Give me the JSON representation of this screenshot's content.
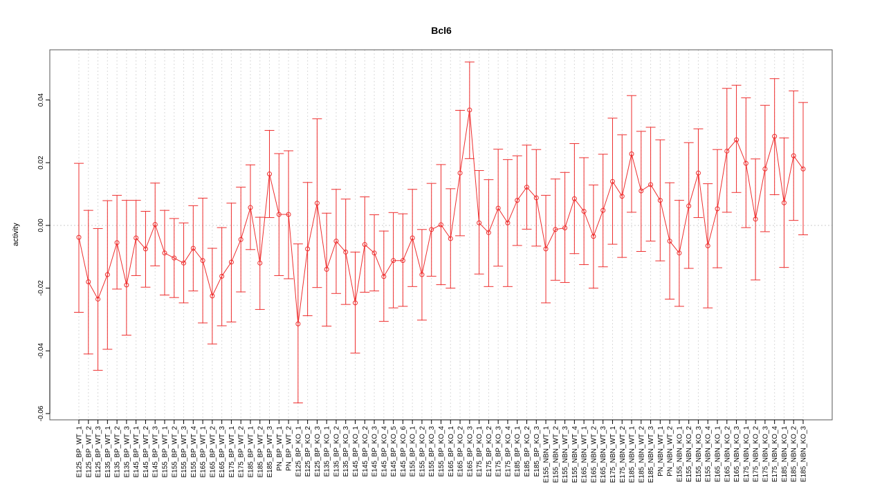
{
  "chart_data": {
    "type": "line",
    "title": "Bcl6",
    "xlabel": "",
    "ylabel": "activity",
    "ylim": [
      -0.062,
      0.056
    ],
    "yticks": [
      -0.06,
      -0.04,
      -0.02,
      0.0,
      0.02,
      0.04
    ],
    "ytick_labels": [
      "-0.06",
      "-0.04",
      "-0.02",
      "0.00",
      "0.02",
      "0.04"
    ],
    "grid": true,
    "color": "#ee2c2c",
    "categories": [
      "E125_BP_WT_1",
      "E125_BP_WT_2",
      "E125_BP_WT_3",
      "E135_BP_WT_1",
      "E135_BP_WT_2",
      "E135_BP_WT_3",
      "E145_BP_WT_1",
      "E145_BP_WT_2",
      "E145_BP_WT_3",
      "E155_BP_WT_1",
      "E155_BP_WT_2",
      "E155_BP_WT_3",
      "E155_BP_WT_4",
      "E165_BP_WT_1",
      "E165_BP_WT_2",
      "E165_BP_WT_3",
      "E175_BP_WT_1",
      "E175_BP_WT_2",
      "E185_BP_WT_1",
      "E185_BP_WT_2",
      "E185_BP_WT_3",
      "PN_BP_WT_1",
      "PN_BP_WT_2",
      "E125_BP_KO_1",
      "E125_BP_KO_2",
      "E125_BP_KO_3",
      "E135_BP_KO_1",
      "E135_BP_KO_2",
      "E135_BP_KO_3",
      "E145_BP_KO_1",
      "E145_BP_KO_2",
      "E145_BP_KO_3",
      "E145_BP_KO_4",
      "E145_BP_KO_5",
      "E145_BP_KO_6",
      "E155_BP_KO_1",
      "E155_BP_KO_2",
      "E155_BP_KO_3",
      "E155_BP_KO_4",
      "E165_BP_KO_1",
      "E165_BP_KO_2",
      "E165_BP_KO_3",
      "E175_BP_KO_1",
      "E175_BP_KO_2",
      "E175_BP_KO_3",
      "E175_BP_KO_4",
      "E185_BP_KO_1",
      "E185_BP_KO_2",
      "E185_BP_KO_3",
      "E155_NBN_WT_1",
      "E155_NBN_WT_2",
      "E155_NBN_WT_3",
      "E155_NBN_WT_4",
      "E165_NBN_WT_1",
      "E165_NBN_WT_2",
      "E165_NBN_WT_3",
      "E175_NBN_WT_1",
      "E175_NBN_WT_2",
      "E185_NBN_WT_1",
      "E185_NBN_WT_2",
      "E185_NBN_WT_3",
      "PN_NBN_WT_1",
      "PN_NBN_WT_2",
      "E155_NBN_KO_1",
      "E155_NBN_KO_2",
      "E155_NBN_KO_3",
      "E155_NBN_KO_4",
      "E165_NBN_KO_1",
      "E165_NBN_KO_2",
      "E165_NBN_KO_3",
      "E175_NBN_KO_1",
      "E175_NBN_KO_2",
      "E175_NBN_KO_3",
      "E175_NBN_KO_4",
      "E185_NBN_KO_1",
      "E185_NBN_KO_2",
      "E185_NBN_KO_3"
    ],
    "values": [
      -0.0038,
      -0.018,
      -0.0235,
      -0.0157,
      -0.0055,
      -0.019,
      -0.004,
      -0.0075,
      0.0003,
      -0.0088,
      -0.0104,
      -0.012,
      -0.0073,
      -0.0112,
      -0.0225,
      -0.0162,
      -0.0117,
      -0.0045,
      0.0057,
      -0.012,
      0.0164,
      0.0035,
      0.0035,
      -0.0314,
      -0.0075,
      0.0071,
      -0.014,
      -0.005,
      -0.0085,
      -0.0247,
      -0.0061,
      -0.0088,
      -0.0163,
      -0.0112,
      -0.0112,
      -0.004,
      -0.0157,
      -0.0013,
      0.0002,
      -0.0042,
      0.0167,
      0.0368,
      0.0008,
      -0.0023,
      0.0055,
      0.0008,
      0.008,
      0.0122,
      0.0088,
      -0.0075,
      -0.0013,
      -0.0008,
      0.0085,
      0.0045,
      -0.0035,
      0.0048,
      0.014,
      0.0093,
      0.0228,
      0.011,
      0.013,
      0.008,
      -0.005,
      -0.0088,
      0.0062,
      0.0167,
      -0.0065,
      0.0053,
      0.0237,
      0.0273,
      0.0198,
      0.002,
      0.018,
      0.0284,
      0.0072,
      0.0222,
      0.018
    ],
    "upper": [
      0.0198,
      0.0048,
      -0.001,
      0.0079,
      0.0096,
      0.008,
      0.008,
      0.0045,
      0.0135,
      0.0048,
      0.0022,
      0.0008,
      0.0063,
      0.0087,
      -0.0073,
      -0.0007,
      0.0071,
      0.0122,
      0.0193,
      0.0026,
      0.0303,
      0.0229,
      0.0238,
      -0.0059,
      0.0137,
      0.034,
      0.0039,
      0.0115,
      0.0084,
      -0.0085,
      0.0091,
      0.0034,
      -0.0018,
      0.0041,
      0.0037,
      0.0115,
      -0.0013,
      0.0134,
      0.0194,
      0.0117,
      0.0367,
      0.0521,
      0.0175,
      0.0146,
      0.0243,
      0.021,
      0.0222,
      0.0256,
      0.0242,
      0.0096,
      0.0148,
      0.0169,
      0.0261,
      0.0216,
      0.0129,
      0.0227,
      0.0342,
      0.0289,
      0.0414,
      0.03,
      0.0313,
      0.0273,
      0.0136,
      0.008,
      0.0264,
      0.0308,
      0.0133,
      0.0242,
      0.0437,
      0.0447,
      0.0407,
      0.0212,
      0.0383,
      0.0468,
      0.0279,
      0.0429,
      0.0392
    ],
    "lower": [
      -0.0277,
      -0.041,
      -0.0462,
      -0.0395,
      -0.0203,
      -0.035,
      -0.016,
      -0.0197,
      -0.0129,
      -0.0222,
      -0.023,
      -0.0247,
      -0.0209,
      -0.0311,
      -0.0378,
      -0.032,
      -0.0308,
      -0.0212,
      -0.0077,
      -0.0268,
      0.0025,
      -0.016,
      -0.017,
      -0.0566,
      -0.0288,
      -0.0198,
      -0.0321,
      -0.0217,
      -0.0252,
      -0.0407,
      -0.0213,
      -0.0209,
      -0.0306,
      -0.0263,
      -0.0258,
      -0.0195,
      -0.0302,
      -0.0162,
      -0.0189,
      -0.02,
      -0.0033,
      0.0213,
      -0.0155,
      -0.0195,
      -0.013,
      -0.0195,
      -0.0064,
      -0.0012,
      -0.0066,
      -0.0247,
      -0.0175,
      -0.0182,
      -0.009,
      -0.0125,
      -0.02,
      -0.0132,
      -0.006,
      -0.0102,
      0.0042,
      -0.0083,
      -0.005,
      -0.0113,
      -0.0235,
      -0.0258,
      -0.0137,
      0.0025,
      -0.0263,
      -0.0135,
      0.0042,
      0.0105,
      -0.0007,
      -0.0174,
      -0.002,
      0.0098,
      -0.0134,
      0.0016,
      -0.003
    ]
  }
}
